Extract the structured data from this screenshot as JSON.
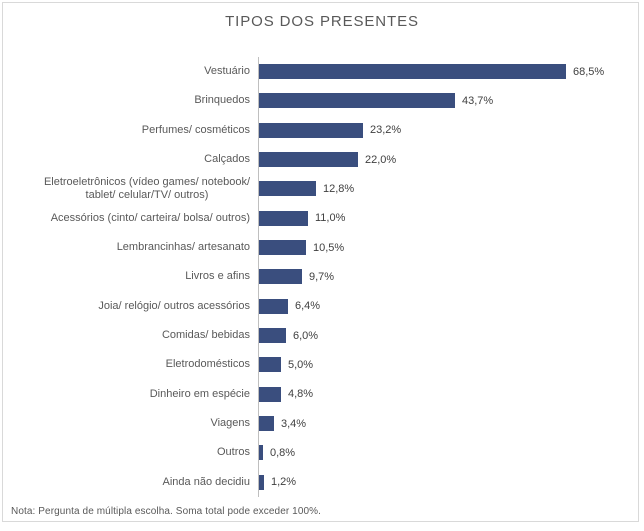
{
  "chart_title": "TIPOS DOS PRESENTES",
  "note": "Nota: Pergunta de múltipla escolha. Soma total pode exceder 100%.",
  "colors": {
    "bar": "#3A4E7E",
    "axis": "#BFBFBF",
    "title_text": "#595959",
    "category_text": "#595959",
    "value_text": "#404040",
    "note_text": "#595959",
    "card_border": "#D9D9D9",
    "background": "#FFFFFF"
  },
  "chart_data": {
    "type": "bar",
    "orientation": "horizontal",
    "title": "TIPOS DOS PRESENTES",
    "categories": [
      "Vestuário",
      "Brinquedos",
      "Perfumes/ cosméticos",
      "Calçados",
      "Eletroeletrônicos (vídeo games/ notebook/\ntablet/ celular/TV/ outros)",
      "Acessórios (cinto/ carteira/ bolsa/ outros)",
      "Lembrancinhas/ artesanato",
      "Livros e afins",
      "Joia/ relógio/ outros acessórios",
      "Comidas/ bebidas",
      "Eletrodomésticos",
      "Dinheiro em espécie",
      "Viagens",
      "Outros",
      "Ainda não decidiu"
    ],
    "values": [
      68.5,
      43.7,
      23.2,
      22.0,
      12.8,
      11.0,
      10.5,
      9.7,
      6.4,
      6.0,
      5.0,
      4.8,
      3.4,
      0.8,
      1.2
    ],
    "value_labels": [
      "68,5%",
      "43,7%",
      "23,2%",
      "22,0%",
      "12,8%",
      "11,0%",
      "10,5%",
      "9,7%",
      "6,4%",
      "6,0%",
      "5,0%",
      "4,8%",
      "3,4%",
      "0,8%",
      "1,2%"
    ],
    "xlim": [
      0,
      80
    ],
    "grid": false,
    "legend": false,
    "value_label_position": "outside-end",
    "note": "Nota: Pergunta de múltipla escolha. Soma total pode exceder 100%."
  }
}
